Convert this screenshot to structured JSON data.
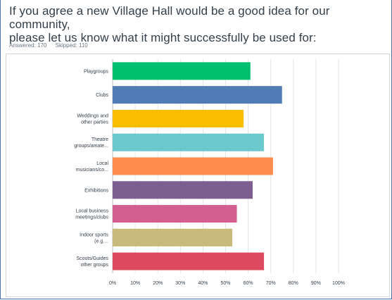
{
  "question": {
    "line1": "If you agree a new Village Hall would be a good idea for our community,",
    "line2": "please let us know what it might successfully be used for:"
  },
  "stats": {
    "answered": "Answered: 170",
    "skipped": "Skipped: 110"
  },
  "chart_data": {
    "type": "bar",
    "orientation": "horizontal",
    "categories": [
      [
        "Playgroups"
      ],
      [
        "Clubs"
      ],
      [
        "Weddings and",
        "other parties"
      ],
      [
        "Theatre",
        "groups/amate..."
      ],
      [
        "Local",
        "musicians/co..."
      ],
      [
        "Exhibitions"
      ],
      [
        "Local business",
        "meetings/clubs"
      ],
      [
        "Indoor sports",
        "(e.g...."
      ],
      [
        "Scouts/Guides",
        "other groups"
      ]
    ],
    "values": [
      61,
      75,
      58,
      67,
      71,
      62,
      55,
      53,
      67
    ],
    "colors": [
      "#00bf6f",
      "#507cb6",
      "#f9be00",
      "#6bc8cd",
      "#ff8b4f",
      "#7d5e90",
      "#d25f90",
      "#c9b97a",
      "#dd4a5f"
    ],
    "xlim": [
      0,
      100
    ],
    "ticks": [
      "0%",
      "10%",
      "20%",
      "30%",
      "40%",
      "50%",
      "60%",
      "70%",
      "80%",
      "90%",
      "100%"
    ],
    "grid": true
  }
}
